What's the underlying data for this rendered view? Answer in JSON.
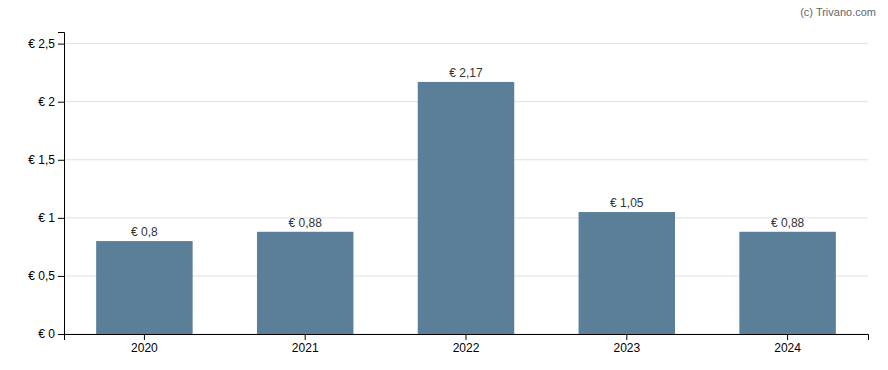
{
  "chart_data": {
    "type": "bar",
    "categories": [
      "2020",
      "2021",
      "2022",
      "2023",
      "2024"
    ],
    "values": [
      0.8,
      0.88,
      2.17,
      1.05,
      0.88
    ],
    "value_labels": [
      "€ 0,8",
      "€ 0,88",
      "€ 2,17",
      "€ 1,05",
      "€ 0,88"
    ],
    "data_labels": true,
    "color": "#5b7f99",
    "ylim": [
      0,
      2.6
    ],
    "yticks": [
      {
        "value": 0,
        "label": "€ 0"
      },
      {
        "value": 0.5,
        "label": "€ 0,5"
      },
      {
        "value": 1.0,
        "label": "€ 1"
      },
      {
        "value": 1.5,
        "label": "€ 1,5"
      },
      {
        "value": 2.0,
        "label": "€ 2"
      },
      {
        "value": 2.5,
        "label": "€ 2,5"
      }
    ],
    "grid": true,
    "annotations": [
      "(c) Trivano.com"
    ]
  }
}
